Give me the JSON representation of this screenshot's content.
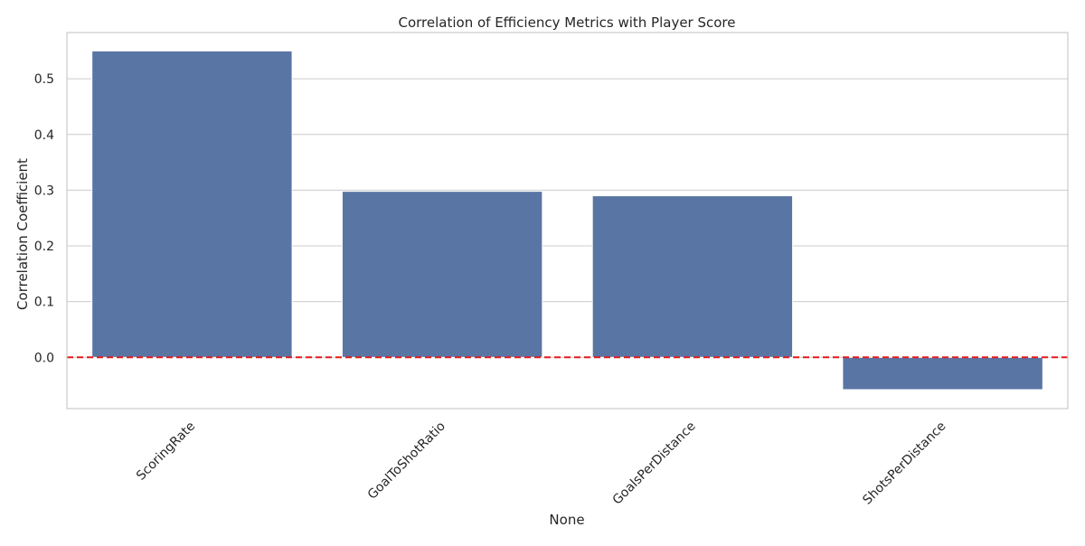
{
  "chart_data": {
    "type": "bar",
    "title": "Correlation of Efficiency Metrics with Player Score",
    "xlabel": "None",
    "ylabel": "Correlation Coefficient",
    "categories": [
      "ScoringRate",
      "GoalToShotRatio",
      "GoalsPerDistance",
      "ShotsPerDistance"
    ],
    "values": [
      0.55,
      0.298,
      0.29,
      -0.058
    ],
    "ylim": [
      -0.092,
      0.583
    ],
    "yticks": [
      "0.0",
      "0.1",
      "0.2",
      "0.3",
      "0.4",
      "0.5"
    ],
    "ytick_values": [
      0.0,
      0.1,
      0.2,
      0.3,
      0.4,
      0.5
    ],
    "grid": "horizontal",
    "reference_line": {
      "value": 0.0,
      "style": "dashed",
      "color": "#e41a1c"
    },
    "bar_color": "#5975a4",
    "grid_color": "#cccccc",
    "frame_color": "#cccccc"
  }
}
